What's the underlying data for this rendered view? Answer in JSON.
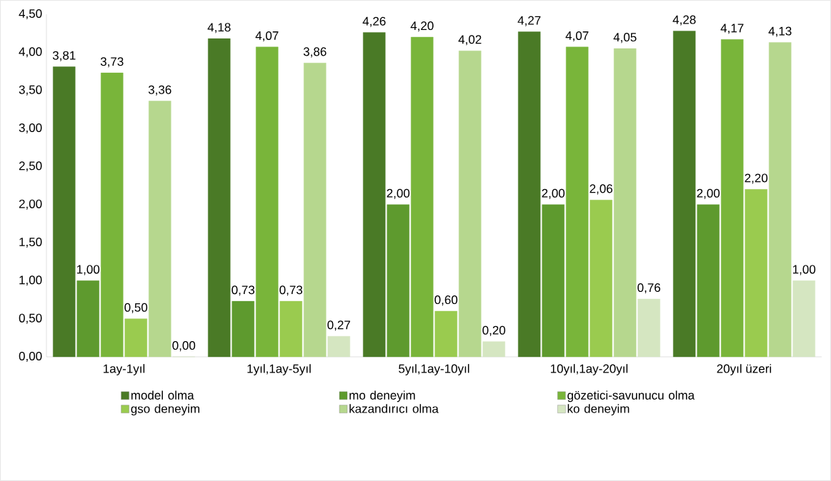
{
  "chart_data": {
    "type": "bar",
    "categories": [
      "1ay-1yıl",
      "1yıl,1ay-5yıl",
      "5yıl,1ay-10yıl",
      "10yıl,1ay-20yıl",
      "20yıl üzeri"
    ],
    "series": [
      {
        "name": "model olma",
        "color": "#4a7a26",
        "values": [
          3.81,
          4.18,
          4.26,
          4.27,
          4.28
        ],
        "value_labels": [
          "3,81",
          "4,18",
          "4,26",
          "4,27",
          "4,28"
        ]
      },
      {
        "name": "mo deneyim",
        "color": "#5e9a2e",
        "values": [
          1.0,
          0.73,
          2.0,
          2.0,
          2.0
        ],
        "value_labels": [
          "1,00",
          "0,73",
          "2,00",
          "2,00",
          "2,00"
        ]
      },
      {
        "name": "gözetici-savunucu olma",
        "color": "#79b53a",
        "values": [
          3.73,
          4.07,
          4.2,
          4.07,
          4.17
        ],
        "value_labels": [
          "3,73",
          "4,07",
          "4,20",
          "4,07",
          "4,17"
        ]
      },
      {
        "name": "gso deneyim",
        "color": "#9acb4f",
        "values": [
          0.5,
          0.73,
          0.6,
          2.06,
          2.2
        ],
        "value_labels": [
          "0,50",
          "0,73",
          "0,60",
          "2,06",
          "2,20"
        ]
      },
      {
        "name": "kazandırıcı olma",
        "color": "#b6d78e",
        "values": [
          3.36,
          3.86,
          4.02,
          4.05,
          4.13
        ],
        "value_labels": [
          "3,36",
          "3,86",
          "4,02",
          "4,05",
          "4,13"
        ]
      },
      {
        "name": "ko deneyim",
        "color": "#d5e6c1",
        "values": [
          0.0,
          0.27,
          0.2,
          0.76,
          1.0
        ],
        "value_labels": [
          "0,00",
          "0,27",
          "0,20",
          "0,76",
          "1,00"
        ]
      }
    ],
    "ylim": [
      0,
      4.5
    ],
    "yticks": [
      {
        "value": 0,
        "label": "0,00"
      },
      {
        "value": 0.5,
        "label": "0,50"
      },
      {
        "value": 1,
        "label": "1,00"
      },
      {
        "value": 1.5,
        "label": "1,50"
      },
      {
        "value": 2,
        "label": "2,00"
      },
      {
        "value": 2.5,
        "label": "2,50"
      },
      {
        "value": 3,
        "label": "3,00"
      },
      {
        "value": 3.5,
        "label": "3,50"
      },
      {
        "value": 4,
        "label": "4,00"
      },
      {
        "value": 4.5,
        "label": "4,50"
      }
    ],
    "legend": "bottom",
    "grid": false
  }
}
